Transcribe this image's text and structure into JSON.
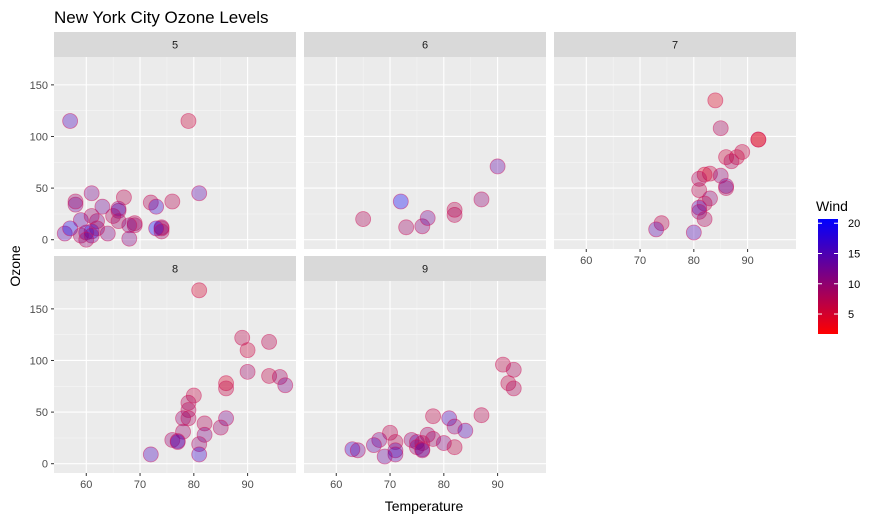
{
  "chart_data": {
    "type": "scatter",
    "title": "New York City Ozone Levels",
    "xlabel": "Temperature",
    "ylabel": "Ozone",
    "xlim": [
      54,
      99
    ],
    "ylim": [
      -9,
      177
    ],
    "x_ticks": [
      60,
      70,
      80,
      90
    ],
    "y_ticks": [
      0,
      50,
      100,
      150
    ],
    "grid": true,
    "point_alpha": 0.35,
    "point_outline": "#D4145A",
    "legend": {
      "title": "Wind",
      "position": "right",
      "range": [
        1.7,
        20.7
      ],
      "ticks": [
        5,
        10,
        15,
        20
      ],
      "low_color": "#FF0000",
      "high_color": "#0000FF"
    },
    "colors": {
      "panel_bg": "#EBEBEB",
      "strip_bg": "#D9D9D9",
      "grid_major": "#FFFFFF"
    },
    "facets": [
      {
        "label": "5",
        "points": [
          {
            "x": 67,
            "y": 41,
            "wind": 7.4
          },
          {
            "x": 72,
            "y": 36,
            "wind": 8.0
          },
          {
            "x": 74,
            "y": 12,
            "wind": 12.6
          },
          {
            "x": 62,
            "y": 18,
            "wind": 11.5
          },
          {
            "x": 56,
            "y": 6,
            "wind": 14.3
          },
          {
            "x": 66,
            "y": 28,
            "wind": 14.9
          },
          {
            "x": 65,
            "y": 23,
            "wind": 8.6
          },
          {
            "x": 59,
            "y": 19,
            "wind": 13.8
          },
          {
            "x": 61,
            "y": 8,
            "wind": 20.1
          },
          {
            "x": 69,
            "y": 16,
            "wind": 8.6
          },
          {
            "x": 74,
            "y": 11,
            "wind": 6.9
          },
          {
            "x": 69,
            "y": 14,
            "wind": 9.7
          },
          {
            "x": 66,
            "y": 18,
            "wind": 9.2
          },
          {
            "x": 68,
            "y": 14,
            "wind": 10.9
          },
          {
            "x": 58,
            "y": 34,
            "wind": 13.2
          },
          {
            "x": 64,
            "y": 6,
            "wind": 11.5
          },
          {
            "x": 66,
            "y": 30,
            "wind": 12.0
          },
          {
            "x": 57,
            "y": 11,
            "wind": 18.4
          },
          {
            "x": 68,
            "y": 1,
            "wind": 11.5
          },
          {
            "x": 62,
            "y": 11,
            "wind": 9.7
          },
          {
            "x": 59,
            "y": 4,
            "wind": 9.7
          },
          {
            "x": 73,
            "y": 32,
            "wind": 16.6
          },
          {
            "x": 61,
            "y": 23,
            "wind": 9.7
          },
          {
            "x": 61,
            "y": 45,
            "wind": 12.0
          },
          {
            "x": 57,
            "y": 115,
            "wind": 15.5
          },
          {
            "x": 58,
            "y": 37,
            "wind": 9.7
          },
          {
            "x": 79,
            "y": 115,
            "wind": 5.7
          },
          {
            "x": 76,
            "y": 37,
            "wind": 7.4
          },
          {
            "x": 81,
            "y": 45,
            "wind": 14.3
          },
          {
            "x": 60,
            "y": 7,
            "wind": 14.0
          },
          {
            "x": 73,
            "y": 11,
            "wind": 20.0
          },
          {
            "x": 74,
            "y": 8,
            "wind": 9.7
          },
          {
            "x": 63,
            "y": 32,
            "wind": 12.6
          },
          {
            "x": 61,
            "y": 4,
            "wind": 13.0
          },
          {
            "x": 60,
            "y": 0,
            "wind": 10.0
          }
        ]
      },
      {
        "label": "6",
        "points": [
          {
            "x": 65,
            "y": 20,
            "wind": 8.0
          },
          {
            "x": 72,
            "y": 37,
            "wind": 20.1
          },
          {
            "x": 73,
            "y": 12,
            "wind": 9.2
          },
          {
            "x": 76,
            "y": 13,
            "wind": 10.9
          },
          {
            "x": 77,
            "y": 21,
            "wind": 12.6
          },
          {
            "x": 82,
            "y": 24,
            "wind": 8.0
          },
          {
            "x": 82,
            "y": 29,
            "wind": 7.4
          },
          {
            "x": 87,
            "y": 39,
            "wind": 10.3
          },
          {
            "x": 90,
            "y": 71,
            "wind": 13.8
          }
        ]
      },
      {
        "label": "7",
        "points": [
          {
            "x": 84,
            "y": 135,
            "wind": 4.0
          },
          {
            "x": 85,
            "y": 108,
            "wind": 8.6
          },
          {
            "x": 92,
            "y": 97,
            "wind": 4.0
          },
          {
            "x": 92,
            "y": 97,
            "wind": 4.0
          },
          {
            "x": 89,
            "y": 85,
            "wind": 6.3
          },
          {
            "x": 88,
            "y": 80,
            "wind": 6.0
          },
          {
            "x": 86,
            "y": 80,
            "wind": 5.7
          },
          {
            "x": 87,
            "y": 76,
            "wind": 8.0
          },
          {
            "x": 83,
            "y": 64,
            "wind": 6.3
          },
          {
            "x": 82,
            "y": 63,
            "wind": 4.3
          },
          {
            "x": 85,
            "y": 62,
            "wind": 10.3
          },
          {
            "x": 81,
            "y": 59,
            "wind": 8.6
          },
          {
            "x": 86,
            "y": 52,
            "wind": 13.8
          },
          {
            "x": 86,
            "y": 50,
            "wind": 9.2
          },
          {
            "x": 81,
            "y": 48,
            "wind": 7.4
          },
          {
            "x": 83,
            "y": 40,
            "wind": 10.3
          },
          {
            "x": 82,
            "y": 35,
            "wind": 7.4
          },
          {
            "x": 81,
            "y": 31,
            "wind": 14.9
          },
          {
            "x": 81,
            "y": 27,
            "wind": 10.9
          },
          {
            "x": 82,
            "y": 20,
            "wind": 8.6
          },
          {
            "x": 74,
            "y": 16,
            "wind": 7.4
          },
          {
            "x": 73,
            "y": 10,
            "wind": 14.3
          },
          {
            "x": 80,
            "y": 7,
            "wind": 14.9
          }
        ]
      },
      {
        "label": "8",
        "points": [
          {
            "x": 81,
            "y": 168,
            "wind": 5.0
          },
          {
            "x": 89,
            "y": 122,
            "wind": 7.0
          },
          {
            "x": 94,
            "y": 118,
            "wind": 7.4
          },
          {
            "x": 90,
            "y": 110,
            "wind": 6.0
          },
          {
            "x": 90,
            "y": 89,
            "wind": 9.2
          },
          {
            "x": 94,
            "y": 85,
            "wind": 6.9
          },
          {
            "x": 96,
            "y": 84,
            "wind": 9.2
          },
          {
            "x": 86,
            "y": 78,
            "wind": 4.6
          },
          {
            "x": 97,
            "y": 76,
            "wind": 11.5
          },
          {
            "x": 86,
            "y": 73,
            "wind": 6.3
          },
          {
            "x": 80,
            "y": 66,
            "wind": 6.3
          },
          {
            "x": 79,
            "y": 59,
            "wind": 8.0
          },
          {
            "x": 79,
            "y": 52,
            "wind": 8.0
          },
          {
            "x": 78,
            "y": 44,
            "wind": 10.3
          },
          {
            "x": 79,
            "y": 44,
            "wind": 8.6
          },
          {
            "x": 86,
            "y": 44,
            "wind": 12.0
          },
          {
            "x": 82,
            "y": 39,
            "wind": 8.0
          },
          {
            "x": 85,
            "y": 35,
            "wind": 9.7
          },
          {
            "x": 78,
            "y": 31,
            "wind": 9.7
          },
          {
            "x": 82,
            "y": 28,
            "wind": 11.5
          },
          {
            "x": 76,
            "y": 23,
            "wind": 10.3
          },
          {
            "x": 77,
            "y": 22,
            "wind": 12.6
          },
          {
            "x": 77,
            "y": 21,
            "wind": 14.3
          },
          {
            "x": 81,
            "y": 19,
            "wind": 10.3
          },
          {
            "x": 81,
            "y": 9,
            "wind": 16.6
          },
          {
            "x": 72,
            "y": 9,
            "wind": 15.5
          }
        ]
      },
      {
        "label": "9",
        "points": [
          {
            "x": 91,
            "y": 96,
            "wind": 6.9
          },
          {
            "x": 93,
            "y": 91,
            "wind": 8.0
          },
          {
            "x": 92,
            "y": 78,
            "wind": 6.9
          },
          {
            "x": 93,
            "y": 73,
            "wind": 8.0
          },
          {
            "x": 87,
            "y": 47,
            "wind": 7.4
          },
          {
            "x": 78,
            "y": 46,
            "wind": 6.9
          },
          {
            "x": 81,
            "y": 44,
            "wind": 15.5
          },
          {
            "x": 82,
            "y": 36,
            "wind": 11.5
          },
          {
            "x": 84,
            "y": 32,
            "wind": 14.9
          },
          {
            "x": 70,
            "y": 30,
            "wind": 7.4
          },
          {
            "x": 77,
            "y": 28,
            "wind": 9.7
          },
          {
            "x": 78,
            "y": 24,
            "wind": 9.2
          },
          {
            "x": 68,
            "y": 23,
            "wind": 12.0
          },
          {
            "x": 74,
            "y": 23,
            "wind": 10.9
          },
          {
            "x": 71,
            "y": 21,
            "wind": 7.4
          },
          {
            "x": 75,
            "y": 21,
            "wind": 12.6
          },
          {
            "x": 76,
            "y": 20,
            "wind": 7.4
          },
          {
            "x": 80,
            "y": 20,
            "wind": 10.9
          },
          {
            "x": 67,
            "y": 18,
            "wind": 13.8
          },
          {
            "x": 75,
            "y": 16,
            "wind": 10.3
          },
          {
            "x": 82,
            "y": 16,
            "wind": 6.9
          },
          {
            "x": 76,
            "y": 14,
            "wind": 9.2
          },
          {
            "x": 63,
            "y": 14,
            "wind": 16.6
          },
          {
            "x": 71,
            "y": 13,
            "wind": 14.3
          },
          {
            "x": 64,
            "y": 13,
            "wind": 12.6
          },
          {
            "x": 76,
            "y": 13,
            "wind": 13.8
          },
          {
            "x": 71,
            "y": 9,
            "wind": 14.3
          },
          {
            "x": 69,
            "y": 7,
            "wind": 13.2
          }
        ]
      }
    ]
  }
}
